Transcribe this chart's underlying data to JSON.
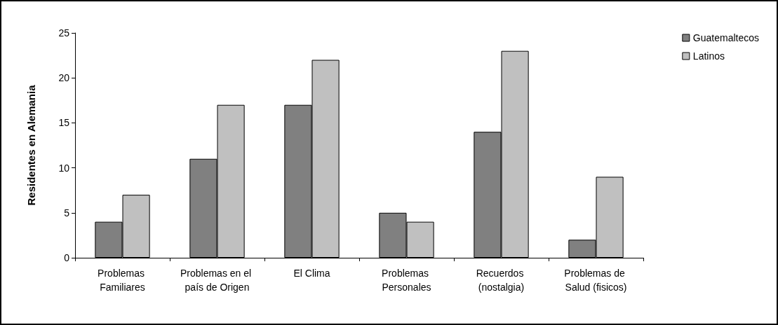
{
  "chart_data": {
    "type": "bar",
    "ylabel": "Residentes en Alemania",
    "categories": [
      "Problemas Familiares",
      "Problemas en el país de Origen",
      "El Clima",
      "Problemas Personales",
      "Recuerdos (nostalgia)",
      "Problemas de Salud (fisicos)"
    ],
    "series": [
      {
        "name": "Guatemaltecos",
        "color": "#808080",
        "values": [
          4,
          11,
          17,
          5,
          14,
          2
        ]
      },
      {
        "name": "Latinos",
        "color": "#c0c0c0",
        "values": [
          7,
          17,
          22,
          4,
          23,
          9
        ]
      }
    ],
    "ylim": [
      0,
      25
    ],
    "yticks": [
      0,
      5,
      10,
      15,
      20,
      25
    ],
    "grid": false,
    "legend": "top right"
  }
}
